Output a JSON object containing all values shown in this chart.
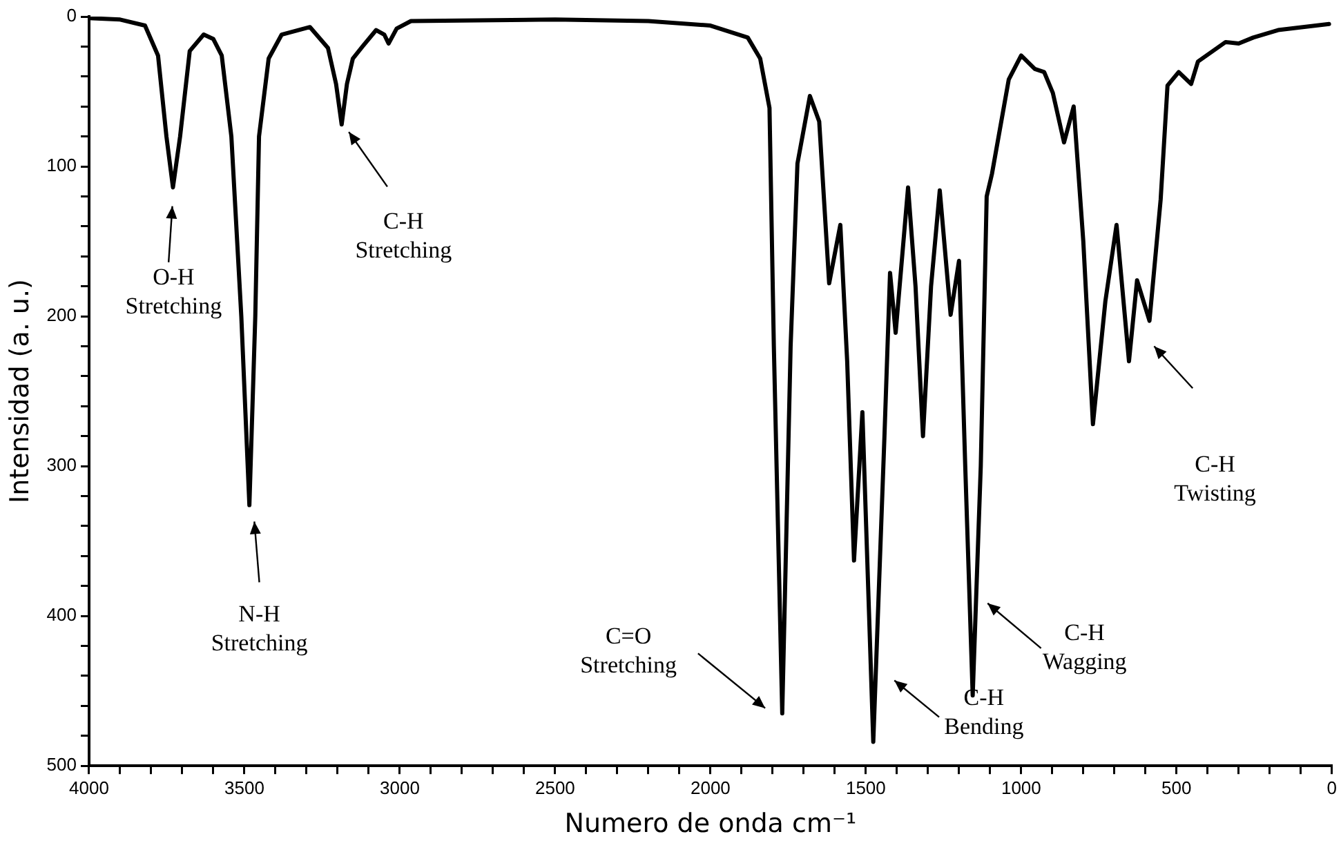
{
  "chart_data": {
    "type": "line",
    "xlabel": "Numero de onda cm⁻¹",
    "ylabel": "Intensidad (a. u.)",
    "color": "#000000",
    "marker": "none",
    "line_style": "solid",
    "legend": false,
    "x": [
      4000,
      3900,
      3820,
      3778,
      3751,
      3730,
      3707,
      3676,
      3631,
      3600,
      3573,
      3542,
      3510,
      3484,
      3465,
      3453,
      3422,
      3380,
      3289,
      3231,
      3205,
      3187,
      3170,
      3151,
      3120,
      3076,
      3050,
      3036,
      3010,
      2964,
      2500,
      2200,
      2000,
      1880,
      1840,
      1810,
      1796,
      1769,
      1742,
      1720,
      1680,
      1650,
      1618,
      1582,
      1560,
      1538,
      1511,
      1476,
      1440,
      1422,
      1404,
      1364,
      1340,
      1316,
      1290,
      1262,
      1227,
      1200,
      1180,
      1156,
      1130,
      1111,
      1094,
      1040,
      1000,
      956,
      926,
      898,
      862,
      831,
      800,
      769,
      729,
      693,
      653,
      627,
      587,
      551,
      529,
      493,
      453,
      431,
      342,
      300,
      253,
      173,
      9
    ],
    "values": [
      1,
      2,
      6,
      26,
      80,
      114,
      80,
      23,
      12,
      15,
      26,
      80,
      200,
      326,
      200,
      80,
      28,
      12,
      7,
      21,
      45,
      72,
      45,
      28,
      20,
      9,
      12,
      18,
      8,
      3,
      2,
      3,
      6,
      14,
      28,
      61,
      220,
      465,
      220,
      98,
      53,
      70,
      178,
      139,
      230,
      363,
      264,
      484,
      280,
      171,
      211,
      114,
      180,
      280,
      180,
      116,
      199,
      163,
      300,
      453,
      300,
      120,
      105,
      42,
      26,
      35,
      37,
      51,
      84,
      60,
      150,
      272,
      190,
      139,
      230,
      176,
      203,
      122,
      46,
      37,
      45,
      30,
      17,
      18,
      14,
      9,
      5
    ],
    "xlim": [
      4000,
      0
    ],
    "ylim": [
      500,
      0
    ],
    "xticks": [
      4000,
      {
        "value": 3900,
        "label": null
      },
      {
        "value": 3800,
        "label": null
      },
      {
        "value": 3700,
        "label": null
      },
      {
        "value": 3600,
        "label": null
      },
      3500,
      {
        "value": 3400,
        "label": null
      },
      {
        "value": 3300,
        "label": null
      },
      {
        "value": 3200,
        "label": null
      },
      {
        "value": 3100,
        "label": null
      },
      3000,
      {
        "value": 2900,
        "label": null
      },
      {
        "value": 2800,
        "label": null
      },
      {
        "value": 2700,
        "label": null
      },
      {
        "value": 2600,
        "label": null
      },
      2500,
      {
        "value": 2400,
        "label": null
      },
      {
        "value": 2300,
        "label": null
      },
      {
        "value": 2200,
        "label": null
      },
      {
        "value": 2100,
        "label": null
      },
      2000,
      {
        "value": 1900,
        "label": null
      },
      {
        "value": 1800,
        "label": null
      },
      {
        "value": 1700,
        "label": null
      },
      {
        "value": 1600,
        "label": null
      },
      1500,
      {
        "value": 1400,
        "label": null
      },
      {
        "value": 1300,
        "label": null
      },
      {
        "value": 1200,
        "label": null
      },
      {
        "value": 1100,
        "label": null
      },
      1000,
      {
        "value": 900,
        "label": null
      },
      {
        "value": 800,
        "label": null
      },
      {
        "value": 700,
        "label": null
      },
      {
        "value": 600,
        "label": null
      },
      500,
      {
        "value": 400,
        "label": null
      },
      {
        "value": 300,
        "label": null
      },
      {
        "value": 200,
        "label": null
      },
      {
        "value": 100,
        "label": null
      },
      0
    ],
    "yticks": [
      0,
      {
        "value": 20,
        "label": null
      },
      {
        "value": 40,
        "label": null
      },
      {
        "value": 60,
        "label": null
      },
      {
        "value": 80,
        "label": null
      },
      100,
      {
        "value": 120,
        "label": null
      },
      {
        "value": 140,
        "label": null
      },
      {
        "value": 160,
        "label": null
      },
      {
        "value": 180,
        "label": null
      },
      200,
      {
        "value": 220,
        "label": null
      },
      {
        "value": 240,
        "label": null
      },
      {
        "value": 260,
        "label": null
      },
      {
        "value": 280,
        "label": null
      },
      300,
      {
        "value": 320,
        "label": null
      },
      {
        "value": 340,
        "label": null
      },
      {
        "value": 360,
        "label": null
      },
      {
        "value": 380,
        "label": null
      },
      400,
      {
        "value": 420,
        "label": null
      },
      {
        "value": 440,
        "label": null
      },
      {
        "value": 460,
        "label": null
      },
      {
        "value": 480,
        "label": null
      },
      500
    ],
    "annotations": [
      "O-H\nStretching",
      "N-H\nStretching",
      "C-H\nStretching",
      "C=O\nStretching",
      "C-H\nBending",
      "C-H\nWagging",
      "C-H\nTwisting"
    ]
  }
}
